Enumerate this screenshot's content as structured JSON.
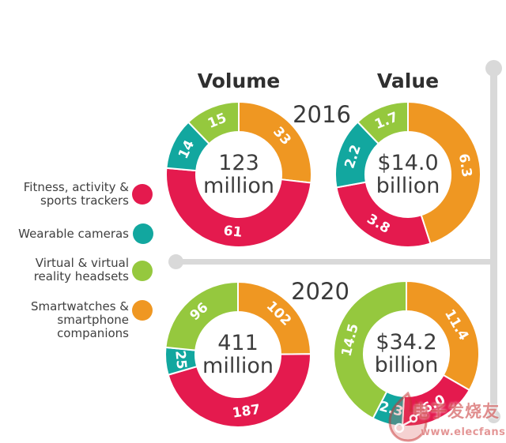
{
  "chart_data": {
    "type": "donut",
    "columns": [
      "Volume",
      "Value"
    ],
    "rows": [
      "2016",
      "2020"
    ],
    "direction": "clockwise",
    "start_angle_deg": 0,
    "colors": {
      "fitness": "#e41a4e",
      "cameras": "#12a79f",
      "vr": "#95c83e",
      "smartwatch": "#ef9722"
    },
    "legend": {
      "items": [
        {
          "key": "fitness",
          "label": "Fitness, activity & sports trackers"
        },
        {
          "key": "cameras",
          "label": "Wearable cameras"
        },
        {
          "key": "vr",
          "label": "Virtual & virtual reality headsets"
        },
        {
          "key": "smartwatch",
          "label": "Smartwatches & smartphone companions"
        }
      ]
    },
    "donuts": [
      {
        "id": "volume-2016",
        "metric": "Volume",
        "year": "2016",
        "total_label": [
          "123",
          "million"
        ],
        "segments": [
          {
            "category": "smartwatch",
            "value": 33,
            "label": "33"
          },
          {
            "category": "fitness",
            "value": 61,
            "label": "61"
          },
          {
            "category": "cameras",
            "value": 14,
            "label": "14"
          },
          {
            "category": "vr",
            "value": 15,
            "label": "15"
          }
        ]
      },
      {
        "id": "value-2016",
        "metric": "Value",
        "year": "2016",
        "total_label": [
          "$14.0",
          "billion"
        ],
        "segments": [
          {
            "category": "smartwatch",
            "value": 6.3,
            "label": "6.3"
          },
          {
            "category": "fitness",
            "value": 3.8,
            "label": "3.8"
          },
          {
            "category": "cameras",
            "value": 2.2,
            "label": "2.2"
          },
          {
            "category": "vr",
            "value": 1.7,
            "label": "1.7"
          }
        ]
      },
      {
        "id": "volume-2020",
        "metric": "Volume",
        "year": "2020",
        "total_label": [
          "411",
          "million"
        ],
        "segments": [
          {
            "category": "smartwatch",
            "value": 102,
            "label": "102"
          },
          {
            "category": "fitness",
            "value": 187,
            "label": "187"
          },
          {
            "category": "cameras",
            "value": 25,
            "label": "25"
          },
          {
            "category": "vr",
            "value": 96,
            "label": "96"
          }
        ]
      },
      {
        "id": "value-2020",
        "metric": "Value",
        "year": "2020",
        "total_label": [
          "$34.2",
          "billion"
        ],
        "segments": [
          {
            "category": "smartwatch",
            "value": 11.4,
            "label": "11.4"
          },
          {
            "category": "fitness",
            "value": 6.0,
            "label": "6.0"
          },
          {
            "category": "cameras",
            "value": 2.3,
            "label": "2.3"
          },
          {
            "category": "vr",
            "value": 14.5,
            "label": "14.5"
          }
        ]
      }
    ]
  },
  "timeline_color": "#d9d9d9",
  "watermark": {
    "logo": "elecfans-flame-logo",
    "text": "电子发烧友",
    "url": "www.elecfans.com"
  }
}
